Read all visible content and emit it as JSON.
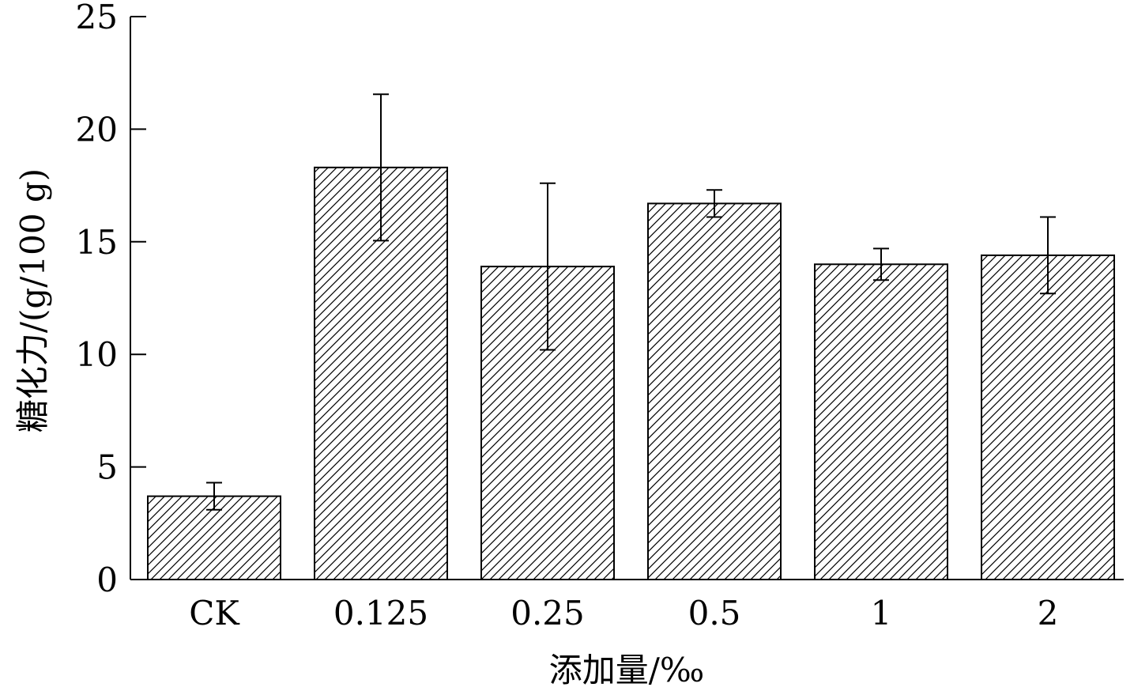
{
  "chart_data": {
    "type": "bar",
    "title": "",
    "xlabel": "添加量/‰",
    "ylabel": "糖化力/(g/100 g)",
    "categories": [
      "CK",
      "0.125",
      "0.25",
      "0.5",
      "1",
      "2"
    ],
    "series": [
      {
        "values": [
          3.7,
          18.3,
          13.9,
          16.7,
          14.0,
          14.4
        ],
        "errors": [
          0.6,
          3.25,
          3.7,
          0.6,
          0.7,
          1.7
        ]
      }
    ],
    "ylim": [
      0,
      25
    ],
    "yticks": [
      "0",
      "5",
      "10",
      "15",
      "20",
      "25"
    ],
    "grid": false,
    "legend": "none",
    "fill_pattern": "diagonal-hatch",
    "colors": {
      "bar_fill": "#ffffff",
      "bar_edge": "#000000",
      "hatch": "#000000"
    }
  }
}
